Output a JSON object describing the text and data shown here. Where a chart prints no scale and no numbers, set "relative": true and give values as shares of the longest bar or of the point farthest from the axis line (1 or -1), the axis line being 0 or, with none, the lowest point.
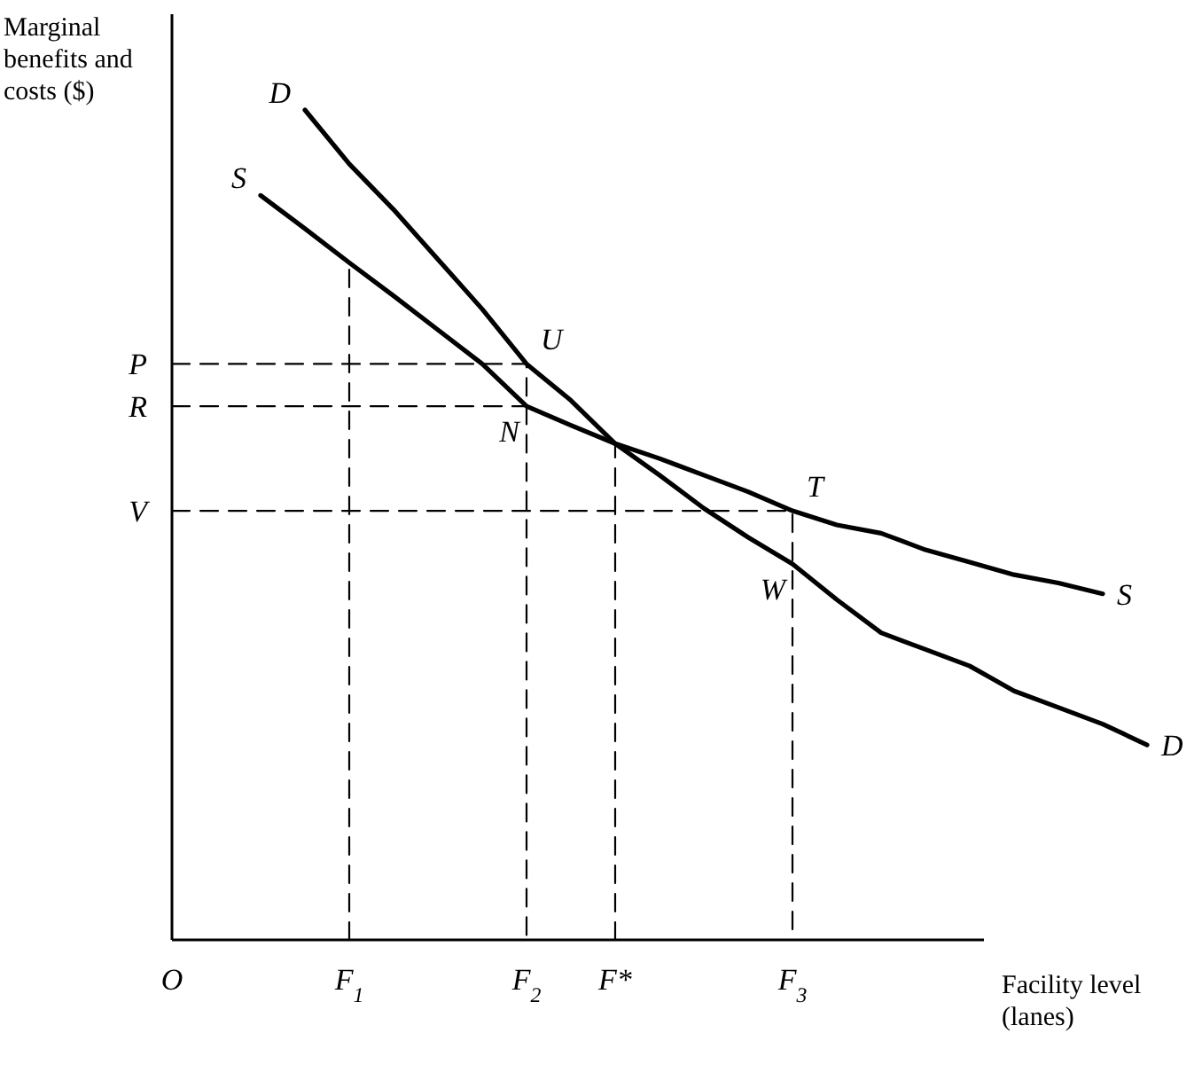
{
  "chart_data": {
    "type": "line",
    "relative": true,
    "xlabel": "Facility level (lanes)",
    "ylabel": "Marginal benefits and costs ($)",
    "marker": "none",
    "categories": [
      "O",
      null,
      null,
      null,
      "F$_{1}$",
      null,
      null,
      null,
      "F$_{2}$",
      null,
      "F*",
      null,
      null,
      null,
      "F$_{3}$",
      null,
      null,
      null,
      null,
      null,
      null,
      null,
      null
    ],
    "series": [
      {
        "name": "D",
        "color": "#000000",
        "line_style": "solid",
        "values": [
          null,
          null,
          null,
          1.0,
          0.935,
          0.88,
          0.82,
          0.76,
          0.694,
          0.65,
          0.598,
          0.56,
          0.52,
          0.485,
          0.453,
          0.41,
          0.37,
          0.35,
          0.33,
          0.3,
          0.28,
          0.26,
          0.235
        ]
      },
      {
        "name": "S",
        "color": "#000000",
        "line_style": "solid",
        "values": [
          null,
          null,
          0.897,
          0.857,
          0.816,
          0.776,
          0.735,
          0.694,
          0.643,
          0.62,
          0.598,
          0.58,
          0.56,
          0.54,
          0.517,
          0.5,
          0.49,
          0.47,
          0.455,
          0.44,
          0.43,
          0.417,
          null
        ]
      },
      {
        "color": "#000000",
        "line_style": "dashed",
        "x": [
          "O",
          "F$_{2}$",
          "F$_{2}$"
        ],
        "values": [
          0.694,
          0.694,
          0
        ]
      },
      {
        "color": "#000000",
        "line_style": "dashed",
        "x": [
          "O",
          "F$_{2}$"
        ],
        "values": [
          0.643,
          0.643
        ]
      },
      {
        "color": "#000000",
        "line_style": "dashed",
        "x": [
          "O",
          "F$_{3}$",
          "F$_{3}$"
        ],
        "values": [
          0.517,
          0.517,
          0
        ]
      },
      {
        "color": "#000000",
        "line_style": "dashed",
        "x": [
          "F$_{1}$",
          "F$_{1}$"
        ],
        "values": [
          0,
          0.816
        ]
      },
      {
        "color": "#000000",
        "line_style": "dashed",
        "x": [
          "F*",
          "F*"
        ],
        "values": [
          0,
          0.598
        ]
      }
    ],
    "annotations": [
      {
        "text": "P",
        "x": "O",
        "y": 0.694
      },
      {
        "text": "R",
        "x": "O",
        "y": 0.643
      },
      {
        "text": "V",
        "x": "O",
        "y": 0.517
      },
      {
        "text": "U",
        "x": "F$_{2}$",
        "y": 0.694
      },
      {
        "text": "N",
        "x": "F$_{2}$",
        "y": 0.643
      },
      {
        "text": "T",
        "x": "F$_{3}$",
        "y": 0.517
      },
      {
        "text": "W",
        "x": "F$_{3}$",
        "y": 0.453
      }
    ]
  }
}
